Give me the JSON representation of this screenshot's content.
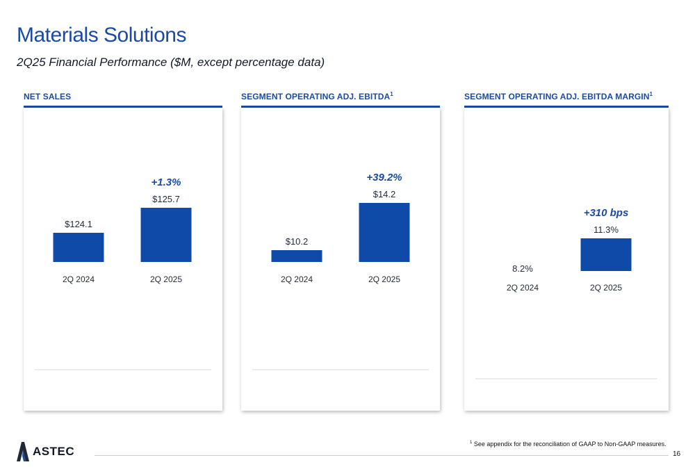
{
  "header": {
    "title": "Materials Solutions",
    "subtitle": "2Q25 Financial Performance ($M, except percentage data)"
  },
  "panels": [
    {
      "heading": "NET SALES",
      "sup": ""
    },
    {
      "heading": "SEGMENT OPERATING ADJ. EBITDA",
      "sup": "1"
    },
    {
      "heading": "SEGMENT OPERATING ADJ. EBITDA MARGIN",
      "sup": "1"
    }
  ],
  "colors": {
    "bar": "#0f4aa8",
    "accent": "#1a4aa3",
    "axis": "#d5d8dd"
  },
  "chart_data": [
    {
      "type": "bar",
      "title": "NET SALES",
      "categories": [
        "2Q 2024",
        "2Q 2025"
      ],
      "values": [
        124.1,
        125.7
      ],
      "labels": [
        "$124.1",
        "$125.7"
      ],
      "change": "+1.3%"
    },
    {
      "type": "bar",
      "title": "SEGMENT OPERATING ADJ. EBITDA",
      "categories": [
        "2Q 2024",
        "2Q 2025"
      ],
      "values": [
        10.2,
        14.2
      ],
      "labels": [
        "$10.2",
        "$14.2"
      ],
      "change": "+39.2%"
    },
    {
      "type": "bar",
      "title": "SEGMENT OPERATING ADJ. EBITDA MARGIN",
      "categories": [
        "2Q 2024",
        "2Q 2025"
      ],
      "values": [
        8.2,
        11.3
      ],
      "labels": [
        "8.2%",
        "11.3%"
      ],
      "change": "+310 bps"
    }
  ],
  "footnote": {
    "sup": "1",
    "text": "See appendix for the reconciliation of GAAP to Non-GAAP measures."
  },
  "logo": {
    "text": "ASTEC"
  },
  "page_number": "16"
}
